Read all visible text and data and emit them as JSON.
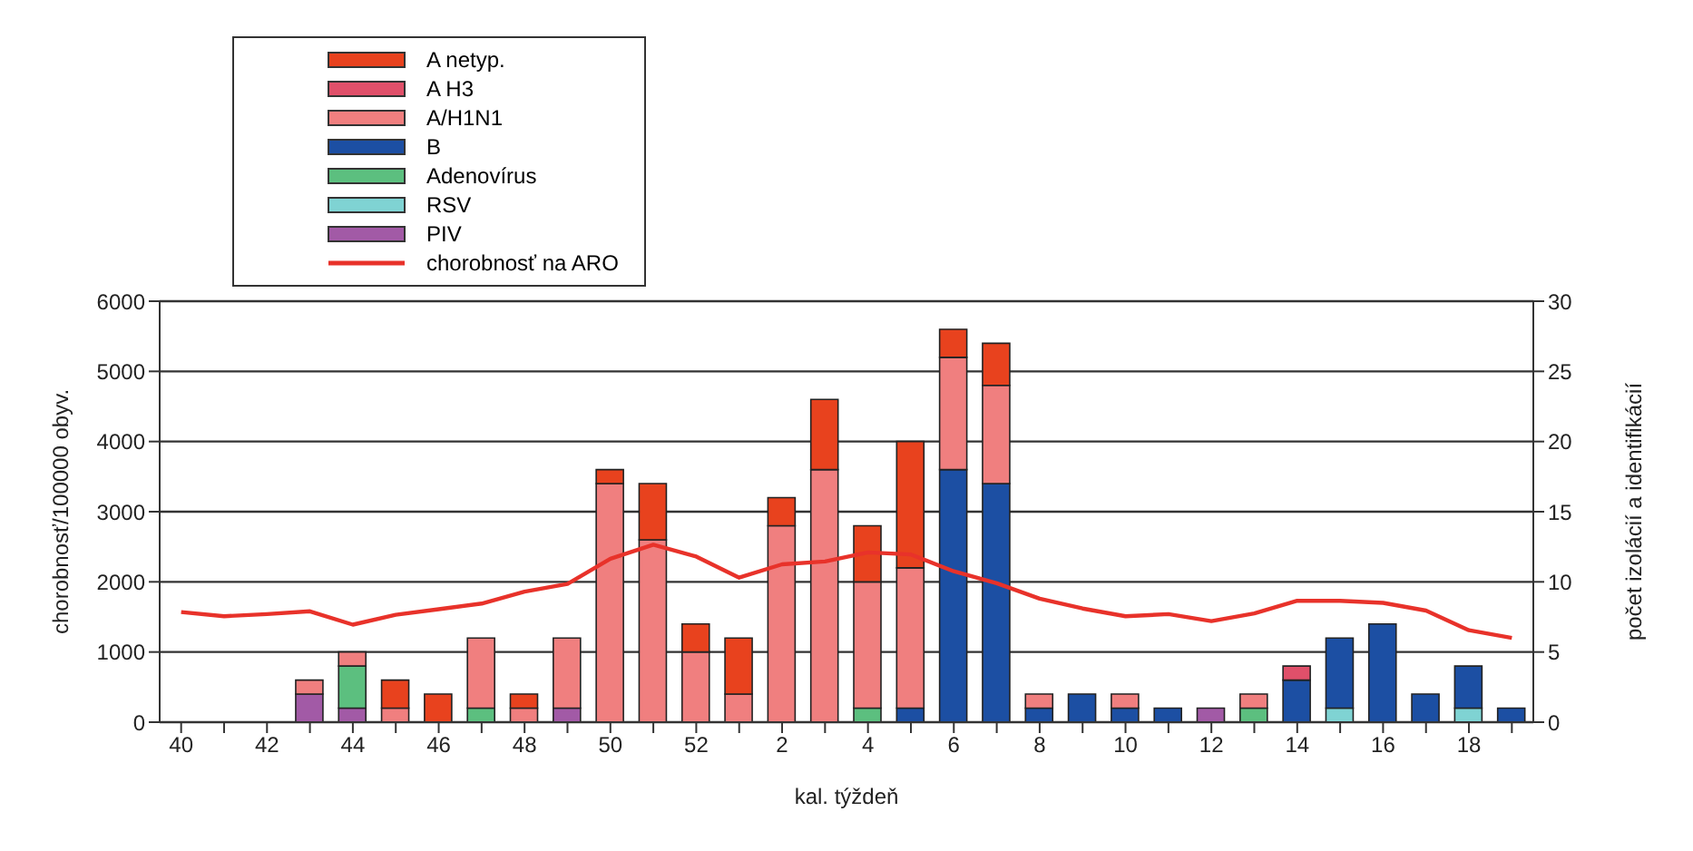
{
  "chart_data": {
    "type": "bar",
    "stacked": true,
    "categories": [
      "40",
      null,
      "42",
      null,
      "44",
      null,
      "46",
      null,
      "48",
      null,
      "50",
      null,
      "52",
      null,
      "2",
      null,
      "4",
      null,
      "6",
      null,
      "8",
      null,
      "10",
      null,
      "12",
      null,
      "14",
      null,
      "16",
      null,
      "18",
      null
    ],
    "xlabel": "kal. týždeň",
    "ylabel": "chorobnosť/100000 obyv.",
    "y2label": "počet izolácií a identifikácií",
    "ylim": [
      0,
      6000
    ],
    "yticks": [
      0,
      1000,
      2000,
      3000,
      4000,
      5000,
      6000
    ],
    "y2lim": [
      0,
      30
    ],
    "y2ticks": [
      0,
      5,
      10,
      15,
      20,
      25,
      30
    ],
    "grid": "y",
    "legend": "top left",
    "marker": "none",
    "series": [
      {
        "name": "PIV",
        "color": "#a25aa6",
        "axis": "y2",
        "values": [
          null,
          null,
          null,
          2,
          1,
          null,
          null,
          null,
          null,
          1,
          null,
          null,
          null,
          null,
          null,
          null,
          null,
          null,
          null,
          null,
          null,
          null,
          null,
          null,
          1,
          null,
          null,
          null,
          null,
          null,
          null,
          null
        ]
      },
      {
        "name": "RSV",
        "color": "#7fd3d3",
        "axis": "y2",
        "values": [
          null,
          null,
          null,
          null,
          null,
          null,
          null,
          null,
          null,
          null,
          null,
          null,
          null,
          null,
          null,
          null,
          null,
          null,
          null,
          null,
          null,
          null,
          null,
          null,
          null,
          null,
          null,
          1,
          null,
          null,
          1,
          null
        ]
      },
      {
        "name": "Adenovírus",
        "color": "#5cbf7f",
        "axis": "y2",
        "values": [
          null,
          null,
          null,
          null,
          3,
          null,
          null,
          1,
          null,
          null,
          null,
          null,
          null,
          null,
          null,
          null,
          1,
          null,
          null,
          null,
          null,
          null,
          null,
          null,
          null,
          1,
          null,
          null,
          null,
          null,
          null,
          null
        ]
      },
      {
        "name": "B",
        "color": "#1c4fa3",
        "axis": "y2",
        "values": [
          null,
          null,
          null,
          null,
          null,
          null,
          null,
          null,
          null,
          null,
          null,
          null,
          null,
          null,
          null,
          null,
          null,
          1,
          18,
          17,
          1,
          2,
          1,
          1,
          null,
          null,
          3,
          5,
          7,
          2,
          3,
          1
        ]
      },
      {
        "name": "A/H1N1",
        "color": "#f07f7f",
        "axis": "y2",
        "values": [
          null,
          null,
          null,
          1,
          1,
          1,
          null,
          5,
          1,
          5,
          17,
          13,
          5,
          2,
          14,
          18,
          9,
          10,
          8,
          7,
          1,
          null,
          1,
          null,
          null,
          1,
          null,
          null,
          null,
          null,
          null,
          null
        ]
      },
      {
        "name": "A H3",
        "color": "#e0506a",
        "axis": "y2",
        "values": [
          null,
          null,
          null,
          null,
          null,
          null,
          null,
          null,
          null,
          null,
          null,
          null,
          null,
          null,
          null,
          null,
          null,
          null,
          null,
          null,
          null,
          null,
          null,
          null,
          null,
          null,
          1,
          null,
          null,
          null,
          null,
          null
        ]
      },
      {
        "name": "A netyp.",
        "color": "#e8421e",
        "axis": "y2",
        "values": [
          null,
          null,
          null,
          null,
          null,
          2,
          2,
          null,
          1,
          null,
          1,
          4,
          2,
          4,
          2,
          5,
          4,
          9,
          2,
          3,
          null,
          null,
          null,
          null,
          null,
          null,
          null,
          null,
          null,
          null,
          null,
          null
        ]
      },
      {
        "name": "chorobnosť na ARO",
        "type": "line",
        "color": "#e8322a",
        "axis": "y",
        "values": [
          1570,
          1510,
          1540,
          1580,
          1390,
          1530,
          1610,
          1690,
          1860,
          1970,
          2330,
          2530,
          2360,
          2060,
          2250,
          2290,
          2420,
          2390,
          2150,
          1980,
          1760,
          1620,
          1510,
          1540,
          1440,
          1550,
          1730,
          1730,
          1700,
          1590,
          1310,
          1200
        ]
      }
    ]
  }
}
